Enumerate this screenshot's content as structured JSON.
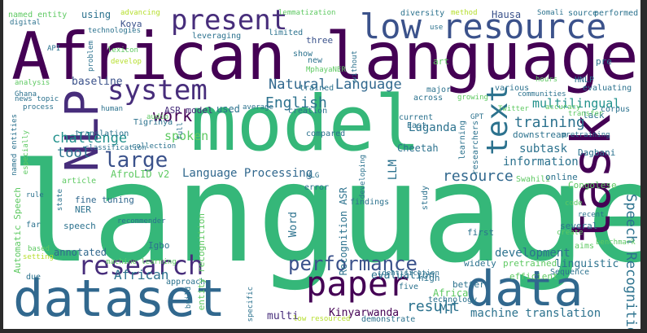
{
  "words": {
    "w_language": "language",
    "w_model": "model",
    "w_african_language": "African language",
    "w_task": "task",
    "w_dataset": "dataset",
    "w_data": "data",
    "w_low_resource": "low resource",
    "w_nlp": "NLP",
    "w_paper": "paper",
    "w_research": "research",
    "w_system": "system",
    "w_present": "present",
    "w_text": "text",
    "w_performance": "performance",
    "w_large": "large",
    "w_natural_language": "Natural Language",
    "w_language_processing": "Language Processing",
    "w_speech_recognition": "Speech Recognition",
    "w_english": "English",
    "w_work": "work",
    "w_resource": "resource",
    "w_training": "training",
    "w_multilingual": "multilingual",
    "w_challenge": "challenge",
    "w_tool": "tool",
    "w_result": "result",
    "w_mt": "MT",
    "w_machine_translation": "machine translation",
    "w_development": "development",
    "w_information": "information",
    "w_african": "African",
    "w_kinyarwanda": "Kinyarwanda",
    "w_multi": "multi",
    "w_evaluation": "evaluation",
    "w_subtask": "subtask",
    "w_linguistic": "linguistic",
    "w_spoken": "spoken",
    "w_annotated": "annotated",
    "w_luganda": "Luganda",
    "w_asr_model": "ASR model",
    "w_baseline": "baseline",
    "w_hausa": "Hausa",
    "w_using": "using",
    "w_koya": "Koya",
    "w_named_entity": "named entity",
    "w_three": "three",
    "w_show": "show",
    "w_new": "new",
    "w_trained": "trained",
    "w_cheetah": "Cheetah",
    "w_afrolid": "AfroLID v2",
    "w_fine_tuning": "fine tuning",
    "w_ner": "NER",
    "w_speech": "speech",
    "w_igbo": "Igbo",
    "w_approach": "approach",
    "w_llm": "LLM",
    "w_word": "Word",
    "w_entity_recognition": "entity recognition",
    "w_recognition_asr": "Recognition ASR",
    "w_automatic_speech": "Automatic Speech",
    "w_downstream": "downstream",
    "w_dagbani": "Dagbani",
    "w_congolese": "Congolese",
    "w_swahili": "Swahili",
    "w_online": "online",
    "w_several": "several",
    "w_first": "first",
    "w_widely": "widely",
    "w_aims": "aims",
    "w_benchmark": "benchmark",
    "w_pretrained": "pretrained",
    "w_better": "better",
    "w_efficient": "efficient",
    "w_high": "high",
    "w_africa": "Africa",
    "w_five": "five",
    "w_technology": "technology",
    "w_low_resourced": "low resourced",
    "w_demonstrate": "demonstrate",
    "w_tigrinya": "Tigrinya",
    "w_translation": "translation",
    "w_ghana": "Ghana",
    "w_process": "process",
    "w_rule": "rule",
    "w_article": "article",
    "w_classification": "classification",
    "w_collection": "collection",
    "w_audio": "audio",
    "w_human": "human",
    "w_used": "used",
    "w_average": "average",
    "w_creation": "creation",
    "w_compared": "compared",
    "w_current": "current",
    "w_east": "East",
    "w_gpt": "GPT",
    "w_twitter": "Twitter",
    "w_lack": "lack",
    "w_transfer": "transfer",
    "w_accuracy": "accuracy",
    "w_communities": "communities",
    "w_evaluating": "evaluating",
    "w_hnlp": "HNLP",
    "w_hours": "hours",
    "w_pre": "pre",
    "w_source": "source",
    "w_performed": "performed",
    "w_somali": "Somali",
    "w_method": "method",
    "w_diversity": "diversity",
    "w_lemmatization": "lemmatization",
    "w_advancing": "advancing",
    "w_technologies": "technologies",
    "w_digital": "digital",
    "w_leveraging": "leveraging",
    "w_limited": "limited",
    "w_lexicon": "lexicon",
    "w_develop": "develop",
    "w_api": "API",
    "w_problem": "problem",
    "w_mphayaner": "MphayaNER",
    "w_analysis": "analysis",
    "w_news_topic": "news topic",
    "w_named_entities": "named entities",
    "w_especially": "especially",
    "w_machine_learning": "machine learning",
    "w_recommender": "recommender",
    "w_nlg": "NLG",
    "w_error": "error",
    "w_findings": "findings",
    "w_study": "study",
    "w_developing": "developing",
    "w_state": "state",
    "w_far": "far",
    "w_due": "due",
    "w_setting": "setting",
    "w_build": "build",
    "w_specific": "specific",
    "w_identification": "identification",
    "w_various": "various",
    "w_art": "art",
    "w_major": "major",
    "w_growing": "growing",
    "w_researchers": "researchers",
    "w_learning": "learning",
    "w_across": "across",
    "w_code": "code",
    "w_recent": "recent",
    "w_create": "create",
    "w_corpus": "corpus",
    "w_pretraining": "pretraining",
    "w_sequence": "Sequence",
    "w_full": "full",
    "w_use": "use",
    "w_without": "without",
    "w_based": "based"
  }
}
